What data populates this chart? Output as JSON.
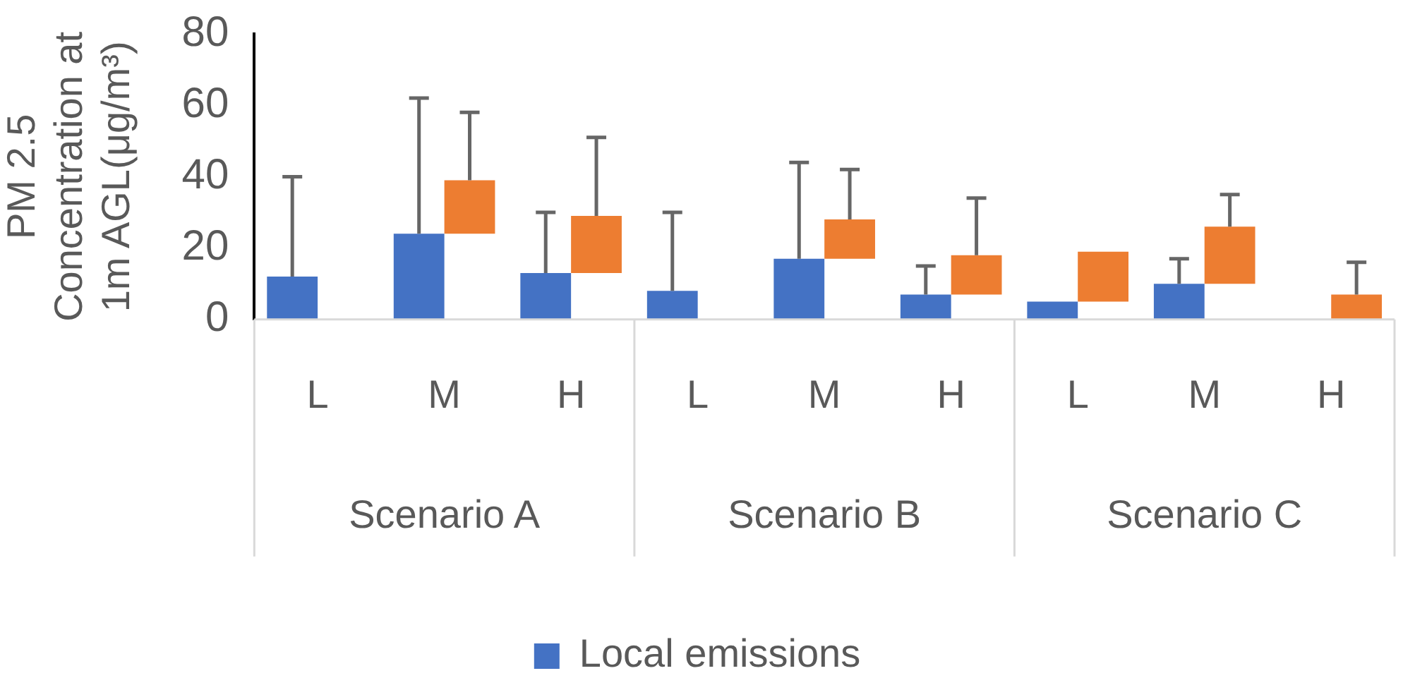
{
  "chart_data": {
    "type": "bar",
    "ylabel": "PM 2.5 Concentration at 1m AGL(μg/m³)",
    "categories": [
      "L",
      "M",
      "H",
      "L",
      "M",
      "H",
      "L",
      "M",
      "H"
    ],
    "series": [
      {
        "name": "Local emissions",
        "color": "#4472c4",
        "values": [
          12,
          24,
          13,
          8,
          17,
          7,
          5,
          10,
          null
        ],
        "errors": [
          [
            12,
            40
          ],
          [
            24,
            62
          ],
          [
            13,
            30
          ],
          [
            8,
            30
          ],
          [
            17,
            44
          ],
          [
            7,
            15
          ],
          null,
          [
            10,
            17
          ],
          null
        ]
      },
      {
        "color": "#ed7d31",
        "base": [
          null,
          24,
          13,
          null,
          17,
          7,
          5,
          10,
          0
        ],
        "values": [
          null,
          15,
          16,
          null,
          11,
          11,
          14,
          16,
          7
        ],
        "errors": [
          null,
          [
            39,
            58
          ],
          [
            29,
            51
          ],
          null,
          [
            28,
            42
          ],
          [
            18,
            34
          ],
          null,
          [
            26,
            35
          ],
          [
            7,
            16
          ]
        ]
      }
    ],
    "ylim": [
      0,
      80
    ],
    "yticks": [
      0,
      20,
      40,
      60,
      80
    ],
    "legend": "bottom",
    "annotations": [
      "Scenario A",
      "Scenario B",
      "Scenario C"
    ]
  }
}
